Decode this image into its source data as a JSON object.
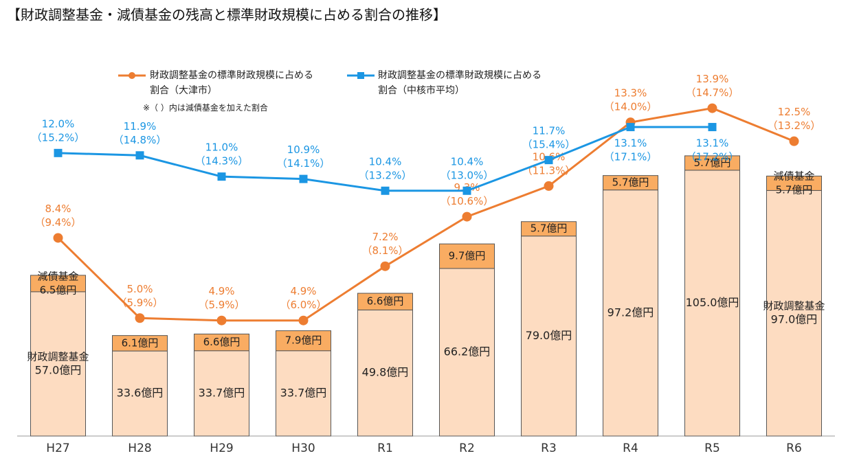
{
  "chart_data": {
    "type": "bar",
    "title": "【財政調整基金・減債基金の残高と標準財政規模に占める割合の推移】",
    "note": "※（ ）内は減債基金を加えた割合",
    "categories": [
      "H27",
      "H28",
      "H29",
      "H30",
      "R1",
      "R2",
      "R3",
      "R4",
      "R5",
      "R6"
    ],
    "ylim": [
      0,
      150
    ],
    "y2lim": [
      0,
      16.1
    ],
    "series": [
      {
        "name": "財政調整基金",
        "type": "bar",
        "color": "#fddcc1",
        "values": [
          57.0,
          33.6,
          33.7,
          33.7,
          49.8,
          66.2,
          79.0,
          97.2,
          105.0,
          97.0
        ],
        "value_labels": [
          "57.0億円",
          "33.6億円",
          "33.7億円",
          "33.7億円",
          "49.8億円",
          "66.2億円",
          "79.0億円",
          "97.2億円",
          "105.0億円",
          "97.0億円"
        ]
      },
      {
        "name": "減債基金",
        "type": "bar",
        "color": "#f9ac62",
        "values": [
          6.5,
          6.1,
          6.6,
          7.9,
          6.6,
          9.7,
          5.7,
          5.7,
          5.7,
          5.7
        ],
        "value_labels": [
          "6.5億円",
          "6.1億円",
          "6.6億円",
          "7.9億円",
          "6.6億円",
          "9.7億円",
          "5.7億円",
          "5.7億円",
          "5.7億円",
          "5.7億円"
        ]
      },
      {
        "name": "財政調整基金の標準財政規模に占める割合（大津市）",
        "type": "line",
        "axis": "y2",
        "color": "#ed7d31",
        "marker": "circle",
        "values": [
          8.4,
          5.0,
          4.9,
          4.9,
          7.2,
          9.3,
          10.6,
          13.3,
          13.9,
          12.5
        ],
        "value_labels": [
          "8.4%",
          "5.0%",
          "4.9%",
          "4.9%",
          "7.2%",
          "9.3%",
          "10.6%",
          "13.3%",
          "13.9%",
          "12.5%"
        ],
        "sub_labels": [
          "（9.4%）",
          "（5.9%）",
          "（5.9%）",
          "（6.0%）",
          "（8.1%）",
          "（10.6%）",
          "（11.3%）",
          "（14.0%）",
          "（14.7%）",
          "（13.2%）"
        ]
      },
      {
        "name": "財政調整基金の標準財政規模に占める割合（中核市平均）",
        "type": "line",
        "axis": "y2",
        "color": "#1b96e3",
        "marker": "square",
        "values": [
          12.0,
          11.9,
          11.0,
          10.9,
          10.4,
          10.4,
          11.7,
          13.1,
          13.1,
          null
        ],
        "value_labels": [
          "12.0%",
          "11.9%",
          "11.0%",
          "10.9%",
          "10.4%",
          "10.4%",
          "11.7%",
          "13.1%",
          "13.1%",
          null
        ],
        "sub_labels": [
          "（15.2%）",
          "（14.8%）",
          "（14.3%）",
          "（14.1%）",
          "（13.2%）",
          "（13.0%）",
          "（15.4%）",
          "（17.1%）",
          "（17.2%）",
          null
        ]
      }
    ]
  }
}
